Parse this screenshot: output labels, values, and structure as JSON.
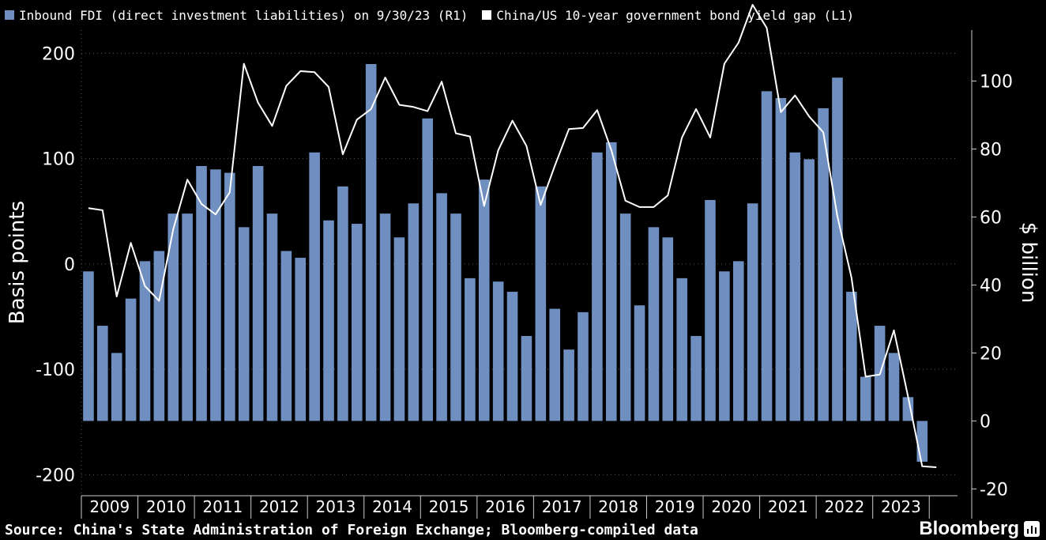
{
  "legend": {
    "bar_label": "Inbound FDI (direct investment liabilities) on 9/30/23 (R1)",
    "line_label": "China/US 10-year government bond yield gap (L1)"
  },
  "footer": {
    "source": "Source: China's State Administration of Foreign Exchange; Bloomberg-compiled data",
    "brand": "Bloomberg"
  },
  "colors": {
    "bar": "#6f8fc0",
    "line": "#ffffff",
    "grid": "#555555",
    "axis": "#cccccc"
  },
  "chart_data": {
    "type": "bar+line",
    "xlabel": "",
    "left_axis": {
      "label": "Basis points",
      "lim": [
        -220,
        222
      ],
      "ticks": [
        -200,
        -100,
        0,
        100,
        200
      ]
    },
    "right_axis": {
      "label": "$ billion",
      "lim": [
        -22,
        115
      ],
      "ticks": [
        -20,
        0,
        20,
        40,
        60,
        80,
        100
      ]
    },
    "years": [
      "2009",
      "2010",
      "2011",
      "2012",
      "2013",
      "2014",
      "2015",
      "2016",
      "2017",
      "2018",
      "2019",
      "2020",
      "2021",
      "2022",
      "2023"
    ],
    "series": [
      {
        "name": "Inbound FDI (direct investment liabilities) on 9/30/23 (R1)",
        "axis": "right",
        "type": "bar",
        "values": [
          44,
          28,
          20,
          36,
          47,
          50,
          61,
          61,
          75,
          74,
          73,
          57,
          75,
          61,
          50,
          48,
          79,
          59,
          69,
          58,
          105,
          61,
          54,
          64,
          89,
          67,
          61,
          42,
          71,
          41,
          38,
          25,
          69,
          33,
          21,
          32,
          79,
          82,
          61,
          34,
          57,
          54,
          42,
          25,
          65,
          44,
          47,
          64,
          97,
          95,
          79,
          77,
          92,
          101,
          38,
          13,
          28,
          20,
          7,
          -12
        ]
      },
      {
        "name": "China/US 10-year government bond yield gap (L1)",
        "axis": "left",
        "type": "line",
        "values": [
          53,
          51,
          -31,
          20,
          -21,
          -35,
          33,
          80,
          57,
          47,
          68,
          190,
          153,
          131,
          169,
          183,
          182,
          168,
          104,
          137,
          147,
          177,
          151,
          149,
          145,
          173,
          124,
          121,
          55,
          108,
          136,
          112,
          56,
          93,
          128,
          129,
          146,
          108,
          60,
          54,
          54,
          65,
          120,
          147,
          120,
          190,
          210,
          246,
          224,
          144,
          160,
          140,
          125,
          45,
          -13,
          -107,
          -105,
          -63,
          -126,
          -192,
          -193
        ]
      }
    ]
  }
}
